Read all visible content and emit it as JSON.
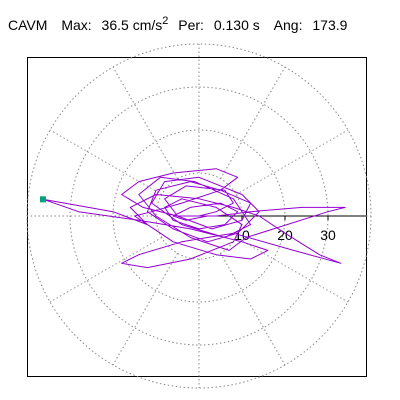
{
  "header": {
    "name": "CAVM",
    "max_label": "Max:",
    "max_value": "36.5",
    "max_unit": "cm/s",
    "max_unit_exp": "2",
    "per_label": "Per:",
    "per_value": "0.130 s",
    "ang_label": "Ang:",
    "ang_value": "173.9"
  },
  "colors": {
    "trace": "#9400D3",
    "grid": "#888888",
    "marker": "#00A080",
    "axis": "#000000"
  },
  "chart_data": {
    "type": "polar-orbit",
    "title": "",
    "radial_ticks": [
      10,
      20,
      30
    ],
    "radial_max": 40,
    "grid_rings": [
      10,
      20,
      30,
      40
    ],
    "spoke_angle_step_deg": 30,
    "grid": true,
    "max_vector": {
      "magnitude": 36.5,
      "angle_deg": 173.9
    },
    "trace": {
      "x": [
        0,
        4,
        8,
        6,
        -3,
        -8,
        -5,
        3,
        10,
        12,
        5,
        -2,
        -10,
        -12,
        -6,
        2,
        9,
        14,
        10,
        0,
        -8,
        -11,
        -4,
        6,
        12,
        8,
        -1,
        -9,
        -14,
        -10,
        -2,
        7,
        11,
        30,
        34,
        24,
        12,
        4,
        -5,
        -13,
        -18,
        -14,
        -6,
        4,
        9,
        5,
        -4,
        -11,
        -15,
        -12,
        -20,
        -36.3,
        -28,
        -14,
        -2,
        10,
        16,
        12,
        4,
        -6,
        -12,
        -16,
        -10,
        0,
        8,
        14,
        20,
        28,
        33,
        22,
        8,
        -4,
        -14,
        -18,
        -12,
        -2,
        8,
        10,
        4,
        -4,
        -8,
        -6,
        0,
        6,
        9,
        5,
        -2,
        -6,
        -3,
        2
      ],
      "y": [
        0,
        1,
        3,
        6,
        7,
        4,
        0,
        -3,
        -1,
        3,
        6,
        8,
        6,
        1,
        -3,
        -6,
        -4,
        1,
        5,
        9,
        8,
        3,
        -2,
        -5,
        -2,
        4,
        8,
        9,
        5,
        0,
        -5,
        -8,
        -5,
        1,
        2,
        2,
        1,
        0,
        0,
        2,
        5,
        8,
        10,
        11,
        9,
        6,
        3,
        1,
        0,
        -2,
        1,
        3.9,
        1,
        -1,
        -3,
        -6,
        -8,
        -10,
        -9,
        -6,
        -2,
        2,
        5,
        4,
        2,
        0,
        -4,
        -9,
        -11,
        -8,
        -4,
        -6,
        -9,
        -11,
        -12,
        -10,
        -6,
        -2,
        2,
        4,
        2,
        -1,
        -3,
        -2,
        1,
        3,
        2,
        0,
        -1,
        0
      ]
    }
  }
}
